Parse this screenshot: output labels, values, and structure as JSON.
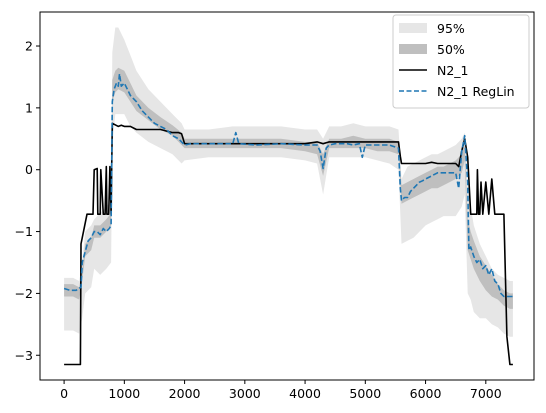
{
  "chart_data": {
    "type": "line",
    "title": "",
    "xlabel": "",
    "ylabel": "",
    "xlim": [
      -400,
      7800
    ],
    "ylim": [
      -3.4,
      2.55
    ],
    "xticks": [
      0,
      1000,
      2000,
      3000,
      4000,
      5000,
      6000,
      7000
    ],
    "xtick_labels": [
      "0",
      "1000",
      "2000",
      "3000",
      "4000",
      "5000",
      "6000",
      "7000"
    ],
    "yticks": [
      -3,
      -2,
      -1,
      0,
      1,
      2
    ],
    "ytick_labels": [
      "−3",
      "−2",
      "−1",
      "0",
      "1",
      "2"
    ],
    "grid": false,
    "legend_position": "top-right",
    "legend": [
      "95%",
      "50%",
      "N2_1",
      "N2_1 RegLin"
    ],
    "colors": {
      "band95": "#e6e6e6",
      "band50": "#bfbfbf",
      "n2_1": "#000000",
      "reglin": "#1f77b4"
    },
    "bands": [
      {
        "name": "95%",
        "x": [
          0,
          150,
          250,
          300,
          350,
          450,
          500,
          600,
          700,
          780,
          800,
          850,
          900,
          1000,
          1100,
          1200,
          1400,
          1600,
          1800,
          1950,
          2000,
          2400,
          2800,
          3200,
          3600,
          4000,
          4200,
          4300,
          4400,
          4600,
          4800,
          5000,
          5200,
          5400,
          5550,
          5600,
          5700,
          5800,
          5900,
          6000,
          6100,
          6200,
          6300,
          6400,
          6500,
          6600,
          6650,
          6700,
          6750,
          6800,
          6900,
          7000,
          7100,
          7200,
          7300,
          7400,
          7450
        ],
        "lower": [
          -2.6,
          -2.6,
          -2.65,
          -2.4,
          -2.0,
          -1.9,
          -1.6,
          -1.7,
          -1.6,
          -1.5,
          0.4,
          0.9,
          0.9,
          0.9,
          0.7,
          0.6,
          0.45,
          0.35,
          0.25,
          0.1,
          0.15,
          0.2,
          0.2,
          0.2,
          0.2,
          0.15,
          0.1,
          -0.4,
          0.2,
          0.2,
          0.2,
          0.2,
          0.15,
          0.1,
          0.0,
          -1.2,
          -1.15,
          -1.1,
          -1.0,
          -0.9,
          -0.85,
          -0.8,
          -0.75,
          -0.75,
          -0.75,
          -0.6,
          -0.4,
          -2.0,
          -2.1,
          -2.3,
          -2.4,
          -2.4,
          -2.5,
          -2.55,
          -2.65,
          -2.7,
          -2.7
        ],
        "upper": [
          -1.75,
          -1.75,
          -1.8,
          -1.5,
          -1.0,
          -0.9,
          -0.8,
          -0.7,
          -0.6,
          -0.5,
          1.9,
          2.3,
          2.3,
          2.1,
          1.85,
          1.6,
          1.3,
          1.1,
          0.9,
          0.75,
          0.65,
          0.65,
          0.7,
          0.7,
          0.7,
          0.65,
          0.65,
          0.5,
          0.7,
          0.7,
          0.75,
          0.7,
          0.7,
          0.7,
          0.65,
          -0.15,
          0.05,
          0.1,
          0.15,
          0.2,
          0.25,
          0.25,
          0.3,
          0.35,
          0.4,
          0.5,
          0.6,
          -0.3,
          -0.6,
          -0.9,
          -1.2,
          -1.4,
          -1.6,
          -1.7,
          -1.75,
          -1.8,
          -1.8
        ]
      },
      {
        "name": "50%",
        "x": [
          0,
          150,
          250,
          300,
          350,
          450,
          500,
          600,
          700,
          780,
          800,
          850,
          900,
          1000,
          1100,
          1200,
          1400,
          1600,
          1800,
          1950,
          2000,
          2400,
          2800,
          3200,
          3600,
          4000,
          4200,
          4300,
          4400,
          4600,
          4800,
          5000,
          5200,
          5400,
          5550,
          5600,
          5700,
          5800,
          5900,
          6000,
          6100,
          6200,
          6300,
          6400,
          6500,
          6600,
          6650,
          6700,
          6750,
          6800,
          6900,
          7000,
          7100,
          7200,
          7300,
          7400,
          7450
        ],
        "lower": [
          -2.05,
          -2.05,
          -2.1,
          -1.8,
          -1.4,
          -1.3,
          -1.1,
          -1.1,
          -1.0,
          -0.9,
          1.1,
          1.25,
          1.3,
          1.25,
          1.1,
          0.95,
          0.8,
          0.65,
          0.55,
          0.4,
          0.35,
          0.35,
          0.35,
          0.35,
          0.35,
          0.3,
          0.25,
          -0.1,
          0.35,
          0.35,
          0.35,
          0.35,
          0.3,
          0.3,
          0.25,
          -0.55,
          -0.5,
          -0.45,
          -0.4,
          -0.35,
          -0.3,
          -0.3,
          -0.25,
          -0.2,
          -0.15,
          -0.05,
          0.15,
          -1.3,
          -1.45,
          -1.6,
          -1.8,
          -1.95,
          -2.05,
          -2.1,
          -2.2,
          -2.25,
          -2.25
        ],
        "upper": [
          -1.85,
          -1.85,
          -1.9,
          -1.6,
          -1.2,
          -1.1,
          -0.9,
          -0.9,
          -0.8,
          -0.7,
          1.45,
          1.6,
          1.65,
          1.6,
          1.4,
          1.2,
          1.0,
          0.85,
          0.72,
          0.6,
          0.5,
          0.5,
          0.5,
          0.5,
          0.5,
          0.45,
          0.45,
          0.25,
          0.5,
          0.5,
          0.55,
          0.5,
          0.5,
          0.5,
          0.45,
          -0.25,
          -0.2,
          -0.15,
          -0.1,
          -0.05,
          0.0,
          0.05,
          0.05,
          0.1,
          0.15,
          0.25,
          0.4,
          -0.8,
          -1.0,
          -1.15,
          -1.4,
          -1.55,
          -1.7,
          -1.85,
          -1.95,
          -2.0,
          -2.0
        ]
      }
    ],
    "series": [
      {
        "name": "N2_1",
        "x": [
          0,
          270,
          280,
          380,
          480,
          500,
          550,
          560,
          600,
          610,
          650,
          680,
          700,
          710,
          740,
          760,
          780,
          800,
          900,
          950,
          1000,
          1100,
          1200,
          1400,
          1600,
          1800,
          1900,
          1950,
          2000,
          2500,
          3000,
          3500,
          4000,
          4200,
          4300,
          4400,
          4800,
          5000,
          5200,
          5400,
          5550,
          5580,
          5600,
          5700,
          5800,
          5900,
          6000,
          6100,
          6200,
          6300,
          6400,
          6500,
          6550,
          6600,
          6650,
          6700,
          6750,
          6800,
          6850,
          6860,
          6880,
          6900,
          6920,
          6950,
          7000,
          7050,
          7100,
          7150,
          7200,
          7250,
          7300,
          7350,
          7400,
          7450
        ],
        "y": [
          -3.15,
          -3.15,
          -1.2,
          -0.72,
          -0.72,
          0.0,
          0.02,
          -0.72,
          -0.72,
          0.0,
          -0.72,
          -0.72,
          0.05,
          -0.72,
          -0.72,
          0.05,
          -0.72,
          0.75,
          0.7,
          0.72,
          0.7,
          0.7,
          0.65,
          0.65,
          0.65,
          0.6,
          0.6,
          0.58,
          0.42,
          0.42,
          0.42,
          0.42,
          0.42,
          0.45,
          0.42,
          0.45,
          0.45,
          0.45,
          0.45,
          0.45,
          0.45,
          0.22,
          0.1,
          0.1,
          0.1,
          0.1,
          0.1,
          0.12,
          0.1,
          0.1,
          0.1,
          0.1,
          0.05,
          0.3,
          0.5,
          0.2,
          -0.72,
          -0.72,
          -0.72,
          0.0,
          -0.72,
          -0.72,
          -0.2,
          -0.72,
          -0.2,
          -0.72,
          -0.15,
          -0.72,
          -0.72,
          -0.72,
          -0.72,
          -2.7,
          -3.15,
          -3.15
        ],
        "style": "solid"
      },
      {
        "name": "N2_1 RegLin",
        "x": [
          0,
          100,
          200,
          280,
          300,
          400,
          450,
          500,
          550,
          600,
          650,
          700,
          750,
          780,
          800,
          830,
          870,
          900,
          920,
          950,
          1000,
          1050,
          1100,
          1150,
          1200,
          1300,
          1400,
          1500,
          1600,
          1700,
          1800,
          1900,
          1950,
          2000,
          2100,
          2400,
          2800,
          2850,
          2900,
          3200,
          3600,
          4000,
          4200,
          4250,
          4300,
          4350,
          4400,
          4500,
          4600,
          4700,
          4800,
          4900,
          4950,
          5000,
          5200,
          5400,
          5550,
          5580,
          5600,
          5650,
          5700,
          5750,
          5800,
          5850,
          5900,
          5950,
          6000,
          6100,
          6200,
          6300,
          6400,
          6500,
          6550,
          6600,
          6650,
          6700,
          6720,
          6750,
          6800,
          6850,
          6900,
          6950,
          7000,
          7050,
          7100,
          7150,
          7200,
          7250,
          7300,
          7350,
          7400,
          7450
        ],
        "y": [
          -1.92,
          -1.95,
          -1.95,
          -1.9,
          -1.5,
          -1.15,
          -1.1,
          -1.0,
          -1.0,
          -1.05,
          -0.95,
          -1.0,
          -0.95,
          -0.9,
          1.1,
          1.3,
          1.4,
          1.35,
          1.55,
          1.35,
          1.4,
          1.3,
          1.2,
          1.15,
          1.1,
          0.95,
          0.85,
          0.75,
          0.7,
          0.65,
          0.55,
          0.5,
          0.45,
          0.4,
          0.42,
          0.42,
          0.42,
          0.6,
          0.42,
          0.4,
          0.42,
          0.4,
          0.4,
          0.3,
          0.02,
          0.35,
          0.4,
          0.42,
          0.42,
          0.42,
          0.4,
          0.42,
          0.2,
          0.4,
          0.4,
          0.4,
          0.35,
          -0.3,
          -0.5,
          -0.45,
          -0.45,
          -0.35,
          -0.3,
          -0.25,
          -0.2,
          -0.18,
          -0.15,
          -0.1,
          -0.05,
          -0.05,
          -0.05,
          -0.05,
          -0.3,
          0.3,
          0.55,
          -0.2,
          -1.3,
          -1.25,
          -1.4,
          -1.5,
          -1.45,
          -1.6,
          -1.55,
          -1.7,
          -1.6,
          -1.8,
          -1.85,
          -2.0,
          -2.05,
          -2.05,
          -2.05,
          -2.05
        ],
        "style": "dashed"
      }
    ]
  }
}
